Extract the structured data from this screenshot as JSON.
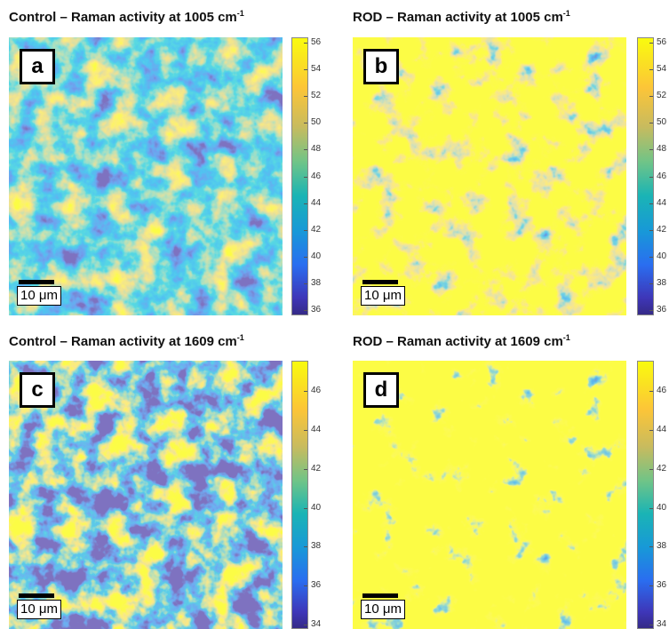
{
  "panels": [
    {
      "title": "Control – Raman activity at 1005 cm",
      "title_sup": "-1",
      "letter": "a",
      "scale_label": "10 μm",
      "colorbar_ticks": [
        "56",
        "54",
        "52",
        "50",
        "48",
        "46",
        "44",
        "42",
        "40",
        "38",
        "36"
      ]
    },
    {
      "title": "ROD – Raman activity at 1005 cm",
      "title_sup": "-1",
      "letter": "b",
      "scale_label": "10 μm",
      "colorbar_ticks": [
        "56",
        "54",
        "52",
        "50",
        "48",
        "46",
        "44",
        "42",
        "40",
        "38",
        "36"
      ]
    },
    {
      "title": "Control – Raman activity at 1609 cm",
      "title_sup": "-1",
      "letter": "c",
      "scale_label": "10 μm",
      "colorbar_ticks": [
        "46",
        "44",
        "42",
        "40",
        "38",
        "36",
        "34"
      ]
    },
    {
      "title": "ROD – Raman activity at 1609 cm",
      "title_sup": "-1",
      "letter": "d",
      "scale_label": "10 μm",
      "colorbar_ticks": [
        "46",
        "44",
        "42",
        "40",
        "38",
        "36",
        "34"
      ]
    }
  ]
}
